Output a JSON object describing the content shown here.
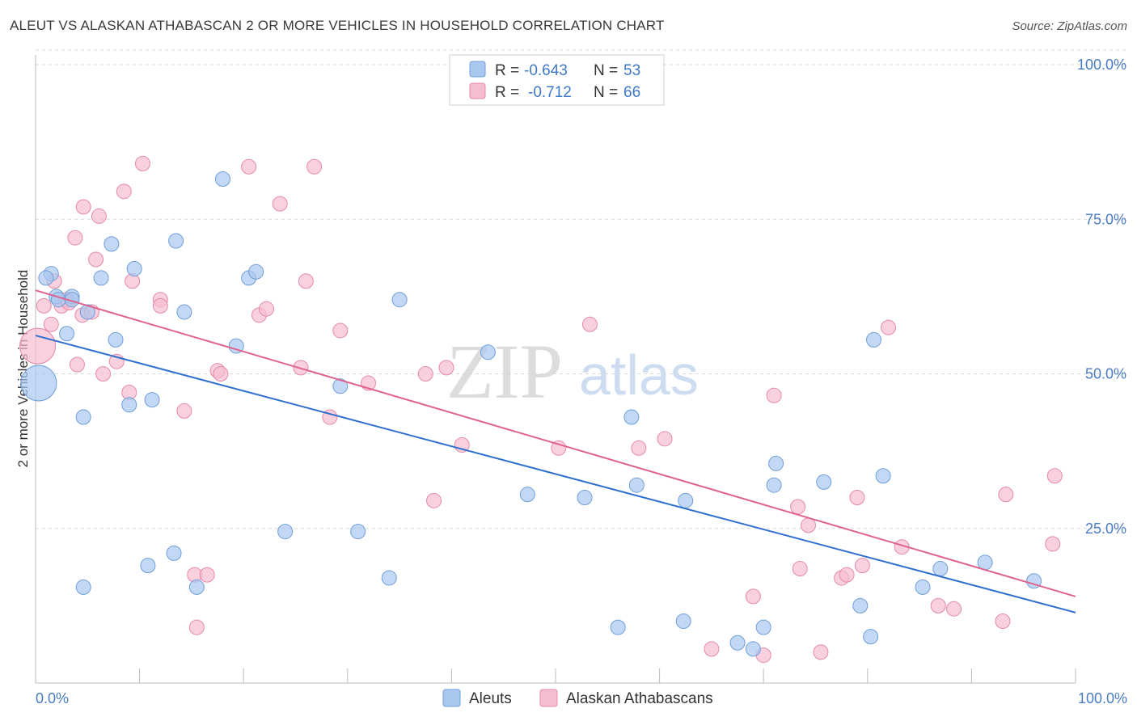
{
  "title": "ALEUT VS ALASKAN ATHABASCAN 2 OR MORE VEHICLES IN HOUSEHOLD CORRELATION CHART",
  "source": "Source: ZipAtlas.com",
  "watermark": {
    "zip": "ZIP",
    "atlas": "atlas"
  },
  "colors": {
    "aleut_fill": "#a9c8f0",
    "aleut_stroke": "#6f9fd8",
    "aleut_line": "#2f6fd0",
    "athabascan_fill": "#f6bcd0",
    "athabascan_stroke": "#e48aa8",
    "athabascan_line": "#e0628e",
    "grid": "#d8d8d8",
    "tick_text": "#4a7cc4"
  },
  "legend": {
    "rows": [
      {
        "r_label": "R =",
        "r_value": "-0.643",
        "n_label": "N =",
        "n_value": "53"
      },
      {
        "r_label": "R =",
        "r_value": "-0.712",
        "n_label": "N =",
        "n_value": "66"
      }
    ]
  },
  "chart_data": {
    "type": "scatter",
    "title": "ALEUT VS ALASKAN ATHABASCAN 2 OR MORE VEHICLES IN HOUSEHOLD CORRELATION CHART",
    "xlabel": "",
    "ylabel": "2 or more Vehicles in Household",
    "xlim": [
      0,
      100
    ],
    "ylim": [
      0,
      100
    ],
    "x_tick_labels": [
      "0.0%",
      "100.0%"
    ],
    "y_tick_labels": [
      "100.0%",
      "75.0%",
      "50.0%",
      "25.0%"
    ],
    "y_ticks": [
      100,
      75,
      50,
      25
    ],
    "grid": true,
    "legend_position": "bottom",
    "series": [
      {
        "name": "Aleuts",
        "color": "#a9c8f0",
        "trend": {
          "x": [
            0,
            100
          ],
          "y": [
            56.2,
            11.4
          ]
        },
        "points": [
          {
            "x": 0.3,
            "y": 48.5,
            "big": true
          },
          {
            "x": 1.5,
            "y": 66.2
          },
          {
            "x": 1.0,
            "y": 65.5
          },
          {
            "x": 2.0,
            "y": 62.5
          },
          {
            "x": 2.2,
            "y": 62.0
          },
          {
            "x": 3.5,
            "y": 62.5
          },
          {
            "x": 3.5,
            "y": 62.0
          },
          {
            "x": 3.0,
            "y": 56.5
          },
          {
            "x": 5.0,
            "y": 60.0
          },
          {
            "x": 6.3,
            "y": 65.5
          },
          {
            "x": 7.3,
            "y": 71.0
          },
          {
            "x": 7.7,
            "y": 55.5
          },
          {
            "x": 9.5,
            "y": 67.0
          },
          {
            "x": 4.6,
            "y": 43.0
          },
          {
            "x": 9.0,
            "y": 45.0
          },
          {
            "x": 11.2,
            "y": 45.8
          },
          {
            "x": 13.5,
            "y": 71.5
          },
          {
            "x": 14.3,
            "y": 60.0
          },
          {
            "x": 18.0,
            "y": 81.5
          },
          {
            "x": 19.3,
            "y": 54.5
          },
          {
            "x": 20.5,
            "y": 65.5
          },
          {
            "x": 21.2,
            "y": 66.5
          },
          {
            "x": 29.3,
            "y": 48.0
          },
          {
            "x": 35.0,
            "y": 62.0
          },
          {
            "x": 43.5,
            "y": 53.5
          },
          {
            "x": 4.6,
            "y": 15.5
          },
          {
            "x": 10.8,
            "y": 19.0
          },
          {
            "x": 13.3,
            "y": 21.0
          },
          {
            "x": 15.5,
            "y": 15.5
          },
          {
            "x": 24.0,
            "y": 24.5
          },
          {
            "x": 31.0,
            "y": 24.5
          },
          {
            "x": 34.0,
            "y": 17.0
          },
          {
            "x": 47.3,
            "y": 30.5
          },
          {
            "x": 52.8,
            "y": 30.0
          },
          {
            "x": 56.0,
            "y": 9.0
          },
          {
            "x": 57.3,
            "y": 43.0
          },
          {
            "x": 57.8,
            "y": 32.0
          },
          {
            "x": 62.3,
            "y": 10.0
          },
          {
            "x": 62.5,
            "y": 29.5
          },
          {
            "x": 67.5,
            "y": 6.5
          },
          {
            "x": 69.0,
            "y": 5.5
          },
          {
            "x": 70.0,
            "y": 9.0
          },
          {
            "x": 71.0,
            "y": 32.0
          },
          {
            "x": 71.2,
            "y": 35.5
          },
          {
            "x": 75.8,
            "y": 32.5
          },
          {
            "x": 79.3,
            "y": 12.5
          },
          {
            "x": 80.3,
            "y": 7.5
          },
          {
            "x": 80.6,
            "y": 55.5
          },
          {
            "x": 81.5,
            "y": 33.5
          },
          {
            "x": 85.3,
            "y": 15.5
          },
          {
            "x": 87.0,
            "y": 18.5
          },
          {
            "x": 91.3,
            "y": 19.5
          },
          {
            "x": 96.0,
            "y": 16.5
          }
        ]
      },
      {
        "name": "Alaskan Athabascans",
        "color": "#f6bcd0",
        "trend": {
          "x": [
            0,
            100
          ],
          "y": [
            63.5,
            14.0
          ]
        },
        "points": [
          {
            "x": 0.2,
            "y": 54.5,
            "big": true
          },
          {
            "x": 0.8,
            "y": 61.0
          },
          {
            "x": 1.5,
            "y": 58.0
          },
          {
            "x": 1.8,
            "y": 65.0
          },
          {
            "x": 2.5,
            "y": 61.0
          },
          {
            "x": 3.0,
            "y": 62.0
          },
          {
            "x": 3.8,
            "y": 72.0
          },
          {
            "x": 4.0,
            "y": 51.5
          },
          {
            "x": 4.5,
            "y": 59.5
          },
          {
            "x": 4.6,
            "y": 77.0
          },
          {
            "x": 5.4,
            "y": 60.0
          },
          {
            "x": 5.8,
            "y": 68.5
          },
          {
            "x": 6.1,
            "y": 75.5
          },
          {
            "x": 6.5,
            "y": 50.0
          },
          {
            "x": 7.8,
            "y": 52.0
          },
          {
            "x": 8.5,
            "y": 79.5
          },
          {
            "x": 9.0,
            "y": 47.0
          },
          {
            "x": 9.3,
            "y": 65.0
          },
          {
            "x": 10.3,
            "y": 84.0
          },
          {
            "x": 12.0,
            "y": 62.0
          },
          {
            "x": 12.0,
            "y": 61.0
          },
          {
            "x": 14.3,
            "y": 44.0
          },
          {
            "x": 17.5,
            "y": 50.5
          },
          {
            "x": 17.8,
            "y": 50.0
          },
          {
            "x": 20.5,
            "y": 83.5
          },
          {
            "x": 21.5,
            "y": 59.5
          },
          {
            "x": 22.2,
            "y": 60.5
          },
          {
            "x": 23.5,
            "y": 77.5
          },
          {
            "x": 25.5,
            "y": 51.0
          },
          {
            "x": 26.0,
            "y": 65.0
          },
          {
            "x": 26.8,
            "y": 83.5
          },
          {
            "x": 28.3,
            "y": 43.0
          },
          {
            "x": 29.3,
            "y": 57.0
          },
          {
            "x": 32.0,
            "y": 48.5
          },
          {
            "x": 37.5,
            "y": 50.0
          },
          {
            "x": 38.3,
            "y": 29.5
          },
          {
            "x": 39.5,
            "y": 51.0
          },
          {
            "x": 41.0,
            "y": 38.5
          },
          {
            "x": 15.3,
            "y": 17.5
          },
          {
            "x": 16.5,
            "y": 17.5
          },
          {
            "x": 15.5,
            "y": 9.0
          },
          {
            "x": 50.3,
            "y": 38.0
          },
          {
            "x": 53.3,
            "y": 58.0
          },
          {
            "x": 58.0,
            "y": 38.0
          },
          {
            "x": 60.5,
            "y": 39.5
          },
          {
            "x": 65.0,
            "y": 5.5
          },
          {
            "x": 69.0,
            "y": 14.0
          },
          {
            "x": 70.0,
            "y": 4.5
          },
          {
            "x": 71.0,
            "y": 46.5
          },
          {
            "x": 73.3,
            "y": 28.5
          },
          {
            "x": 73.5,
            "y": 18.5
          },
          {
            "x": 74.3,
            "y": 25.5
          },
          {
            "x": 75.5,
            "y": 5.0
          },
          {
            "x": 77.5,
            "y": 17.0
          },
          {
            "x": 78.0,
            "y": 17.5
          },
          {
            "x": 79.0,
            "y": 30.0
          },
          {
            "x": 79.5,
            "y": 19.0
          },
          {
            "x": 82.0,
            "y": 57.5
          },
          {
            "x": 83.3,
            "y": 22.0
          },
          {
            "x": 86.8,
            "y": 12.5
          },
          {
            "x": 88.3,
            "y": 12.0
          },
          {
            "x": 93.0,
            "y": 10.0
          },
          {
            "x": 93.3,
            "y": 30.5
          },
          {
            "x": 97.8,
            "y": 22.5
          },
          {
            "x": 98.0,
            "y": 33.5
          },
          {
            "x": 3.2,
            "y": 61.5
          }
        ]
      }
    ]
  }
}
